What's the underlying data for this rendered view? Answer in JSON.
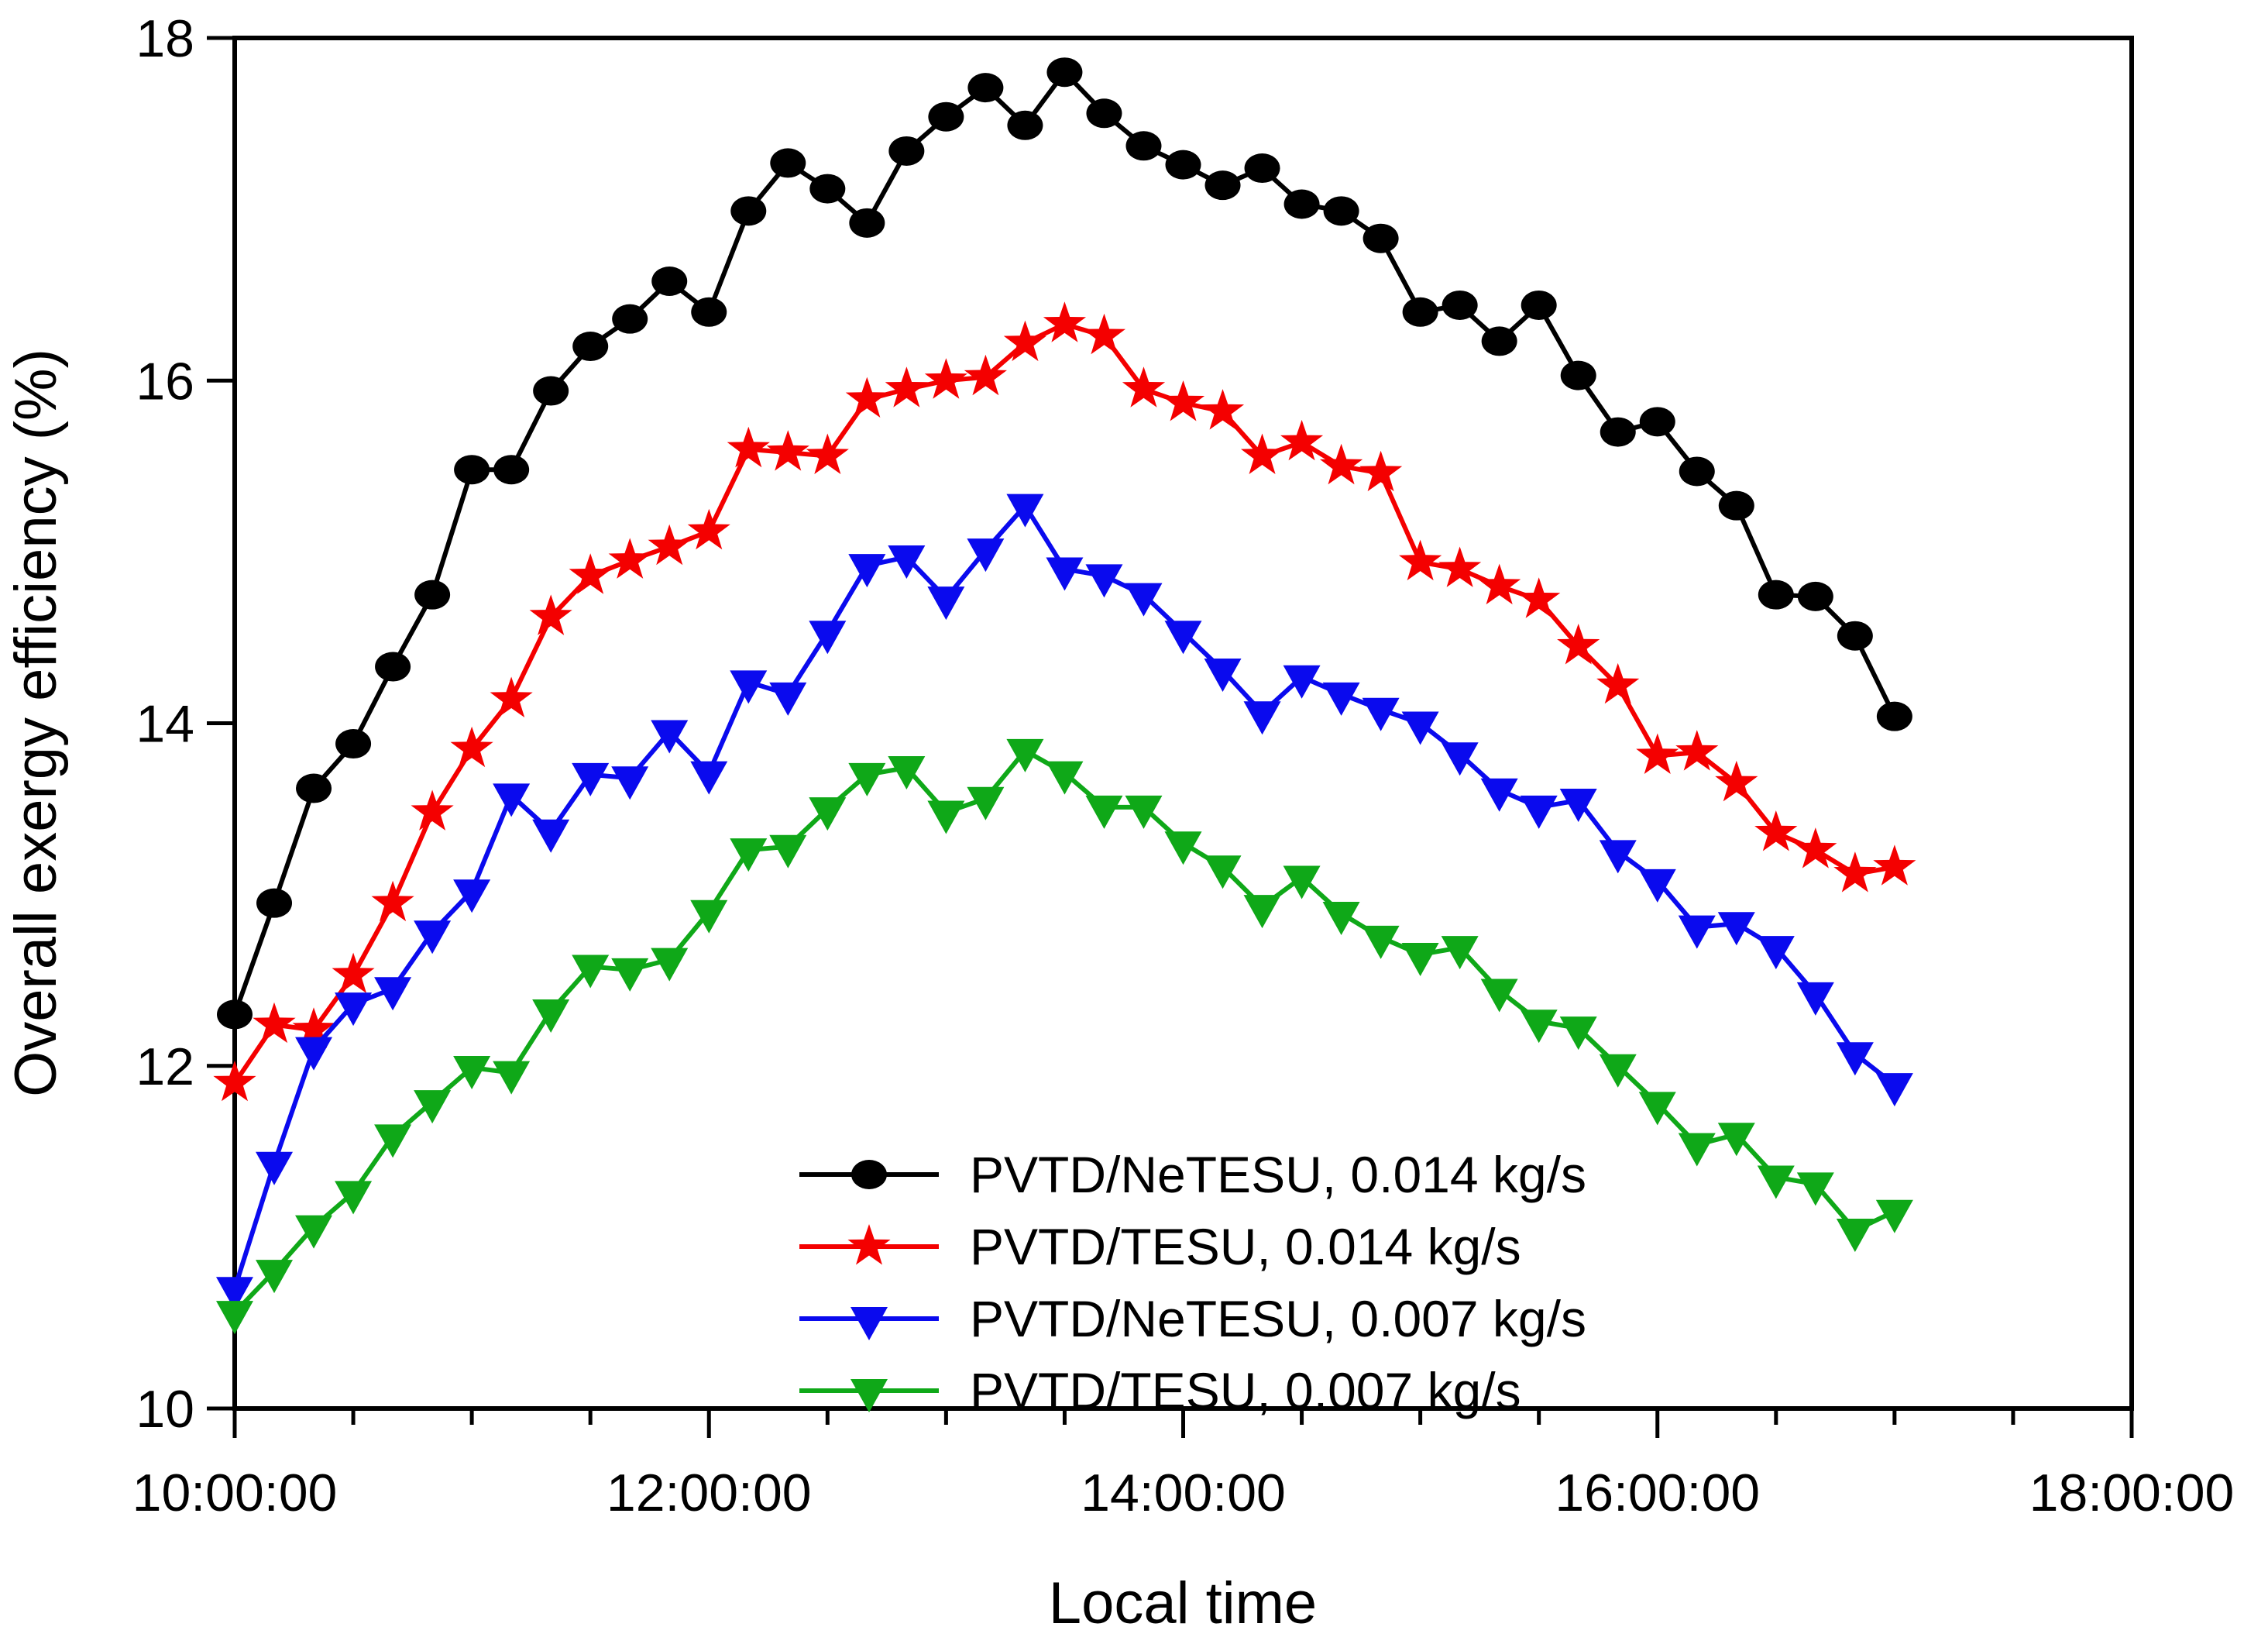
{
  "chart_data": {
    "type": "line",
    "title": "",
    "xlabel": "Local time",
    "ylabel": "Overall exergy efficiency (%)",
    "x_axis": {
      "range_hours": [
        10,
        18
      ],
      "major_tick_labels": [
        "10:00:00",
        "12:00:00",
        "14:00:00",
        "16:00:00",
        "18:00:00"
      ],
      "major_ticks_hours": [
        10,
        12,
        14,
        16,
        18
      ],
      "minor_tick_step_hours": 0.5
    },
    "y_axis": {
      "range": [
        10,
        18
      ],
      "major_ticks": [
        10,
        12,
        14,
        16,
        18
      ],
      "major_tick_labels": [
        "10",
        "12",
        "14",
        "16",
        "18"
      ]
    },
    "sampling": {
      "start_time": "10:00:00",
      "end_time": "17:00:00",
      "interval_minutes": 10,
      "n_points": 43
    },
    "grid": false,
    "legend_position": "inside-bottom-center",
    "series": [
      {
        "name": "PVTD/NeTESU, 0.014 kg/s",
        "color": "#000000",
        "marker": "circle",
        "values": [
          12.3,
          12.95,
          13.62,
          13.88,
          14.33,
          14.75,
          15.48,
          15.48,
          15.94,
          16.2,
          16.36,
          16.58,
          16.4,
          16.99,
          17.27,
          17.12,
          16.92,
          17.34,
          17.54,
          17.71,
          17.49,
          17.8,
          17.56,
          17.37,
          17.26,
          17.14,
          17.24,
          17.03,
          16.99,
          16.83,
          16.4,
          16.44,
          16.23,
          16.44,
          16.03,
          15.7,
          15.76,
          15.47,
          15.27,
          14.75,
          14.74,
          14.51,
          14.04
        ]
      },
      {
        "name": "PVTD/TESU, 0.014 kg/s",
        "color": "#f40000",
        "marker": "star",
        "values": [
          11.9,
          12.24,
          12.21,
          12.53,
          12.95,
          13.48,
          13.85,
          14.14,
          14.62,
          14.86,
          14.95,
          15.03,
          15.12,
          15.6,
          15.58,
          15.56,
          15.89,
          15.95,
          16.0,
          16.02,
          16.22,
          16.33,
          16.26,
          15.95,
          15.87,
          15.82,
          15.56,
          15.64,
          15.5,
          15.46,
          14.94,
          14.9,
          14.8,
          14.72,
          14.45,
          14.22,
          13.81,
          13.83,
          13.65,
          13.36,
          13.26,
          13.12,
          13.16
        ]
      },
      {
        "name": "PVTD/NeTESU, 0.007 kg/s",
        "color": "#0a0aee",
        "marker": "triangle-down",
        "values": [
          10.7,
          11.43,
          12.1,
          12.36,
          12.45,
          12.78,
          13.02,
          13.58,
          13.37,
          13.7,
          13.68,
          13.95,
          13.71,
          14.24,
          14.17,
          14.53,
          14.92,
          14.97,
          14.73,
          15.01,
          15.27,
          14.9,
          14.86,
          14.75,
          14.53,
          14.31,
          14.06,
          14.27,
          14.17,
          14.08,
          14.0,
          13.82,
          13.61,
          13.51,
          13.55,
          13.25,
          13.08,
          12.81,
          12.83,
          12.69,
          12.42,
          12.07,
          11.89
        ]
      },
      {
        "name": "PVTD/TESU, 0.007 kg/s",
        "color": "#0fa818",
        "marker": "triangle-down",
        "values": [
          10.56,
          10.8,
          11.06,
          11.26,
          11.59,
          11.79,
          11.99,
          11.96,
          12.32,
          12.58,
          12.56,
          12.62,
          12.9,
          13.26,
          13.28,
          13.5,
          13.7,
          13.74,
          13.48,
          13.56,
          13.84,
          13.71,
          13.51,
          13.51,
          13.3,
          13.16,
          12.93,
          13.1,
          12.89,
          12.75,
          12.65,
          12.69,
          12.44,
          12.26,
          12.22,
          12.0,
          11.78,
          11.54,
          11.6,
          11.35,
          11.31,
          11.04,
          11.15
        ]
      }
    ]
  }
}
